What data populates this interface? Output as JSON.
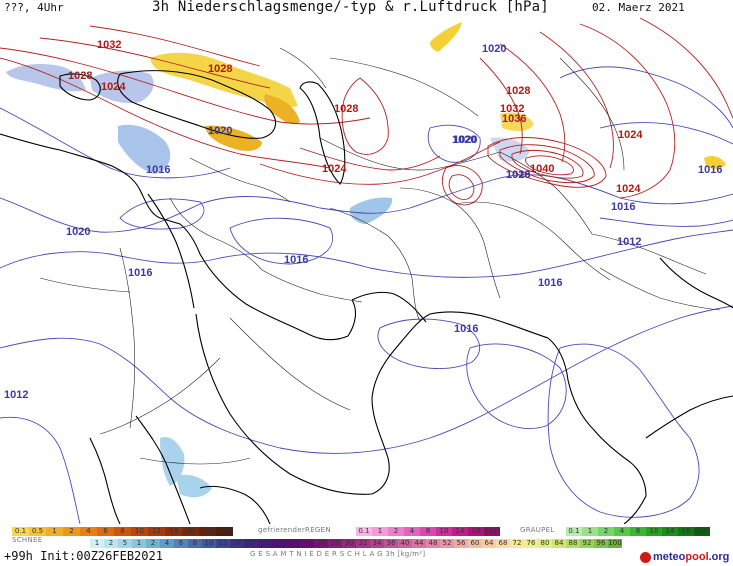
{
  "header": {
    "left": "???, 4Uhr",
    "title": "3h Niederschlagsmenge/-typ & r.Luftdruck [hPa]",
    "date": "02. Maerz 2021"
  },
  "isobars": [
    {
      "text": "1032",
      "kind": "hi"
    },
    {
      "text": "1028",
      "kind": "hi"
    },
    {
      "text": "1024",
      "kind": "hi"
    },
    {
      "text": "1028",
      "kind": "hi"
    },
    {
      "text": "1020",
      "kind": "lo"
    },
    {
      "text": "1016",
      "kind": "lo"
    },
    {
      "text": "1028",
      "kind": "hi"
    },
    {
      "text": "1024",
      "kind": "hi"
    },
    {
      "text": "1020",
      "kind": "lo"
    },
    {
      "text": "1020",
      "kind": "lo"
    },
    {
      "text": "1016",
      "kind": "lo"
    },
    {
      "text": "1016",
      "kind": "lo"
    },
    {
      "text": "1020",
      "kind": "lo"
    },
    {
      "text": "1028",
      "kind": "hi"
    },
    {
      "text": "1032",
      "kind": "hi"
    },
    {
      "text": "1036",
      "kind": "hi"
    },
    {
      "text": "1020",
      "kind": "lo"
    },
    {
      "text": "1020",
      "kind": "lo"
    },
    {
      "text": "1040",
      "kind": "hi"
    },
    {
      "text": "1024",
      "kind": "hi"
    },
    {
      "text": "1024",
      "kind": "hi"
    },
    {
      "text": "1016",
      "kind": "lo"
    },
    {
      "text": "1016",
      "kind": "lo"
    },
    {
      "text": "1012",
      "kind": "lo"
    },
    {
      "text": "1016",
      "kind": "lo"
    },
    {
      "text": "1016",
      "kind": "lo"
    },
    {
      "text": "1016",
      "kind": "lo"
    },
    {
      "text": "1012",
      "kind": "lo"
    }
  ],
  "legend": {
    "rain_values": [
      "0.1",
      "0.5",
      "1",
      "2",
      "4",
      "6",
      "8",
      "10",
      "12",
      "14",
      "16",
      "18",
      "2025+"
    ],
    "freezing_label": "gefrierenderREGEN",
    "freezing_values": [
      "0.1",
      "1",
      "2",
      "4",
      "8",
      "10",
      "14",
      "16",
      "2025+"
    ],
    "graupel_label": "GRAUPEL",
    "graupel_values": [
      "0.1",
      "1",
      "2",
      "4",
      "8",
      "10",
      "14",
      "16",
      "2025+"
    ],
    "snow_label": "SCHNEE",
    "snow_values": [
      "1",
      "2",
      "5",
      "1",
      "2",
      "4",
      "6",
      "8",
      "10",
      "12",
      "14",
      "16",
      "18",
      "20",
      "22",
      "24",
      "26",
      "28",
      "30",
      "32",
      "34",
      "36",
      "40",
      "44",
      "48",
      "52",
      "56",
      "60",
      "64",
      "68",
      "72",
      "76",
      "80",
      "84",
      "88",
      "92",
      "96",
      "100"
    ],
    "total_label": "G E S A M T N I E D E R S C H L A G   3h  [kg/m²]",
    "rain_colors": [
      "#f6d84a",
      "#f3c33a",
      "#f0ad2a",
      "#ec961e",
      "#e57f17",
      "#dc6a12",
      "#cc560f",
      "#b9460d",
      "#a33a0c",
      "#8c300c",
      "#76280c",
      "#62220c",
      "#4e1c0c"
    ],
    "freezing_colors": [
      "#f7b6e6",
      "#f29bd9",
      "#ec7fcc",
      "#e463bd",
      "#da48ad",
      "#cd2f9c",
      "#bd1f8a",
      "#aa1478",
      "#950c66"
    ],
    "graupel_colors": [
      "#b9eab0",
      "#98e08c",
      "#77d46a",
      "#57c64b",
      "#3cb632",
      "#29a224",
      "#1c8c1b",
      "#137615",
      "#0c6010"
    ],
    "snow_colors": [
      "#d2f1f6",
      "#b7e6ef",
      "#9cd8e6",
      "#84c8dc",
      "#70b3d1",
      "#5f9cc6",
      "#5184bb",
      "#466daf",
      "#3e58a3",
      "#3a4598",
      "#3a338d",
      "#3d2484",
      "#44187c",
      "#4e1078",
      "#5a0b76",
      "#680a77",
      "#78107a",
      "#871a7e",
      "#962684",
      "#a4338a",
      "#b24290",
      "#bf5196",
      "#cb629b",
      "#d673a0",
      "#e085a3",
      "#e997a6",
      "#f0aaa7",
      "#f5bca8",
      "#f8cda6",
      "#f9dda2",
      "#f7e89a",
      "#f1ee8f",
      "#e4ed82",
      "#d0e673",
      "#b7dc63",
      "#9cd054",
      "#7fc247",
      "#62b43d"
    ]
  },
  "footer": {
    "init": "+99h Init:00Z26FEB2021",
    "logo_a": "meteo",
    "logo_b": "pool",
    "logo_c": ".org"
  },
  "colors": {
    "low_isobar": "#4a4ab8",
    "high_isobar": "#b52020",
    "coast": "#000000",
    "border": "#222222"
  }
}
